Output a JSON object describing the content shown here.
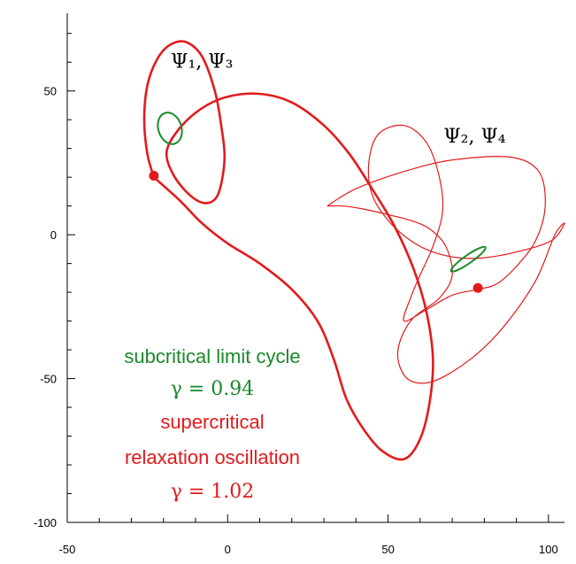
{
  "chart_data": {
    "type": "line",
    "title": "",
    "xlabel": "",
    "ylabel": "",
    "xlim": [
      -50,
      105
    ],
    "ylim": [
      -100,
      77
    ],
    "x_ticks": [
      -50,
      0,
      50,
      100
    ],
    "x_tick_labels": [
      "-50",
      "0",
      "50",
      "100"
    ],
    "y_ticks": [
      -100,
      -50,
      0,
      50
    ],
    "y_tick_labels": [
      "-100",
      "-50",
      "0",
      "50"
    ],
    "grid": false,
    "colors": {
      "supercritical": "#e31a1c",
      "subcritical": "#1a8a2a",
      "axis": "#000000"
    },
    "series": [
      {
        "key": "relax_1",
        "color": "#e31a1c",
        "points": [
          [
            -23,
            20
          ],
          [
            -25,
            28
          ],
          [
            -26,
            40
          ],
          [
            -25,
            52
          ],
          [
            -22,
            61
          ],
          [
            -18,
            66
          ],
          [
            -13,
            67
          ],
          [
            -8,
            62
          ],
          [
            -4,
            50
          ],
          [
            -2,
            38
          ],
          [
            -1,
            26
          ],
          [
            -3,
            14
          ],
          [
            -7,
            11
          ],
          [
            -12,
            14
          ],
          [
            -17,
            21
          ],
          [
            -19,
            29
          ],
          [
            -15,
            37
          ],
          [
            -8,
            44
          ],
          [
            0,
            48
          ],
          [
            10,
            49
          ],
          [
            20,
            46
          ],
          [
            30,
            38
          ],
          [
            38,
            28
          ],
          [
            45,
            16
          ],
          [
            52,
            3
          ],
          [
            58,
            -12
          ],
          [
            62,
            -27
          ],
          [
            64,
            -43
          ],
          [
            63,
            -58
          ],
          [
            60,
            -71
          ],
          [
            55,
            -78
          ],
          [
            48,
            -75
          ],
          [
            42,
            -67
          ],
          [
            37,
            -57
          ],
          [
            33,
            -43
          ],
          [
            28,
            -30
          ],
          [
            20,
            -19
          ],
          [
            10,
            -10
          ],
          [
            0,
            -3
          ],
          [
            -8,
            4
          ],
          [
            -15,
            12
          ],
          [
            -23,
            20
          ]
        ]
      },
      {
        "key": "relax_2",
        "color": "#e31a1c",
        "points": [
          [
            31,
            10
          ],
          [
            40,
            16
          ],
          [
            55,
            22
          ],
          [
            70,
            26
          ],
          [
            88,
            27
          ],
          [
            97,
            22
          ],
          [
            99,
            10
          ],
          [
            96,
            -2
          ],
          [
            90,
            -11
          ],
          [
            84,
            -17
          ],
          [
            78,
            -19
          ],
          [
            70,
            -21
          ],
          [
            62,
            -26
          ],
          [
            55,
            -30
          ],
          [
            57,
            -22
          ],
          [
            60,
            -14
          ],
          [
            64,
            -4
          ],
          [
            67,
            8
          ],
          [
            66,
            20
          ],
          [
            62,
            32
          ],
          [
            55,
            38
          ],
          [
            47,
            35
          ],
          [
            44,
            25
          ],
          [
            45,
            14
          ],
          [
            50,
            5
          ],
          [
            57,
            -2
          ],
          [
            64,
            -6
          ],
          [
            72,
            -8
          ],
          [
            80,
            -8
          ],
          [
            90,
            -6
          ],
          [
            101,
            -2
          ],
          [
            105,
            4
          ],
          [
            102,
            0
          ],
          [
            96,
            -16
          ],
          [
            86,
            -32
          ],
          [
            76,
            -43
          ],
          [
            64,
            -51
          ],
          [
            56,
            -50
          ],
          [
            53,
            -41
          ],
          [
            57,
            -30
          ],
          [
            66,
            -22
          ],
          [
            70,
            -14
          ],
          [
            68,
            -4
          ],
          [
            63,
            2
          ],
          [
            57,
            5
          ],
          [
            50,
            7
          ],
          [
            42,
            9
          ],
          [
            36,
            10
          ],
          [
            31,
            10
          ]
        ]
      }
    ],
    "limit_cycles": [
      {
        "key": "lc_1",
        "color": "#1a8a2a",
        "cx": -18,
        "cy": 37,
        "rx": 3.6,
        "ry": 5.6,
        "rotate": -18
      },
      {
        "key": "lc_2",
        "color": "#1a8a2a",
        "cx": 75,
        "cy": -8.5,
        "rx": 6.5,
        "ry": 1.4,
        "rotate": -35
      }
    ],
    "markers": [
      {
        "key": "marker_1",
        "x": -23,
        "y": 20.5,
        "color": "#e31a1c"
      },
      {
        "key": "marker_2",
        "x": 78,
        "y": -18.5,
        "color": "#e31a1c"
      }
    ],
    "annotations": [
      {
        "key": "psi13",
        "x": -8,
        "y": 58,
        "label": "Ψ₁, Ψ₃"
      },
      {
        "key": "psi24",
        "x": 77,
        "y": 32,
        "label": "Ψ₂, Ψ₄"
      }
    ],
    "legend": {
      "subcritical_label": "subcritical limit cycle",
      "gamma_subcritical": "γ = 0.94",
      "supercritical_label": "supercritical",
      "relaxation_label": "relaxation oscillation",
      "gamma_supercritical": "γ = 1.02"
    }
  }
}
